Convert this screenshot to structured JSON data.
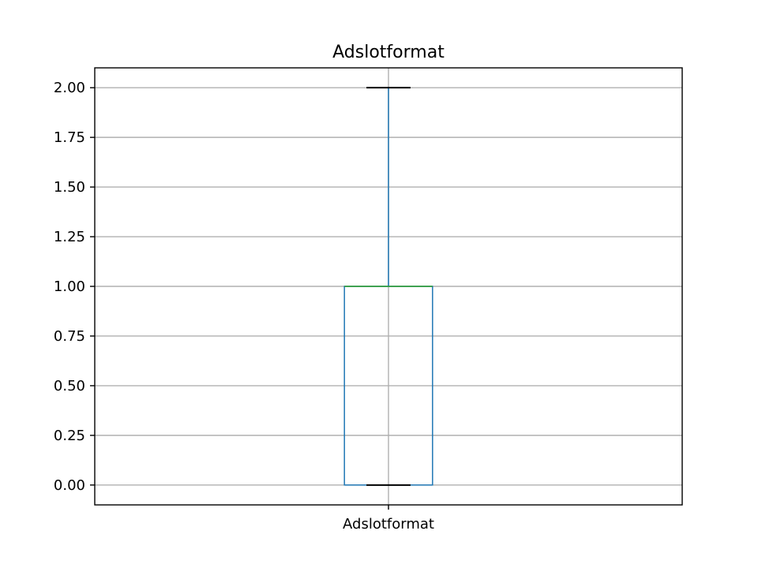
{
  "chart_data": {
    "type": "boxplot",
    "title": "Adslotformat",
    "categories": [
      "Adslotformat"
    ],
    "boxes": [
      {
        "name": "Adslotformat",
        "whisker_low": 0.0,
        "q1": 0.0,
        "median": 1.0,
        "q3": 1.0,
        "whisker_high": 2.0
      }
    ],
    "ylim": [
      -0.1,
      2.1
    ],
    "yticks": [
      0.0,
      0.25,
      0.5,
      0.75,
      1.0,
      1.25,
      1.5,
      1.75,
      2.0
    ],
    "ytick_labels": [
      "0.00",
      "0.25",
      "0.50",
      "0.75",
      "1.00",
      "1.25",
      "1.50",
      "1.75",
      "2.00"
    ],
    "grid": true,
    "colors": {
      "box": "#1f77b4",
      "median": "#2ca02c",
      "caps": "#000000",
      "grid": "#b0b0b0"
    }
  }
}
